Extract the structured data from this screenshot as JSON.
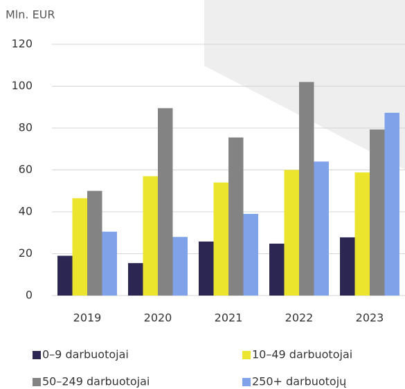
{
  "chart_data": {
    "type": "bar",
    "y_axis_label": "Mln. EUR",
    "categories": [
      "2019",
      "2020",
      "2021",
      "2022",
      "2023"
    ],
    "series": [
      {
        "name": "0–9 darbuotojai",
        "color": "#2b2652",
        "values": [
          19,
          15.5,
          25.8,
          24.8,
          27.8
        ]
      },
      {
        "name": "10–49 darbuotojai",
        "color": "#ece52e",
        "values": [
          46.5,
          57,
          54,
          60,
          58.8
        ]
      },
      {
        "name": "50–249 darbuotojai",
        "color": "#838383",
        "values": [
          50,
          89.5,
          75.5,
          102,
          79.3
        ]
      },
      {
        "name": "250+ darbuotojų",
        "color": "#7fa2e8",
        "values": [
          30.5,
          28,
          39,
          64,
          87.3
        ]
      }
    ],
    "ylim": [
      0,
      120
    ],
    "yticks": [
      0,
      20,
      40,
      60,
      80,
      100,
      120
    ],
    "grid": true
  }
}
